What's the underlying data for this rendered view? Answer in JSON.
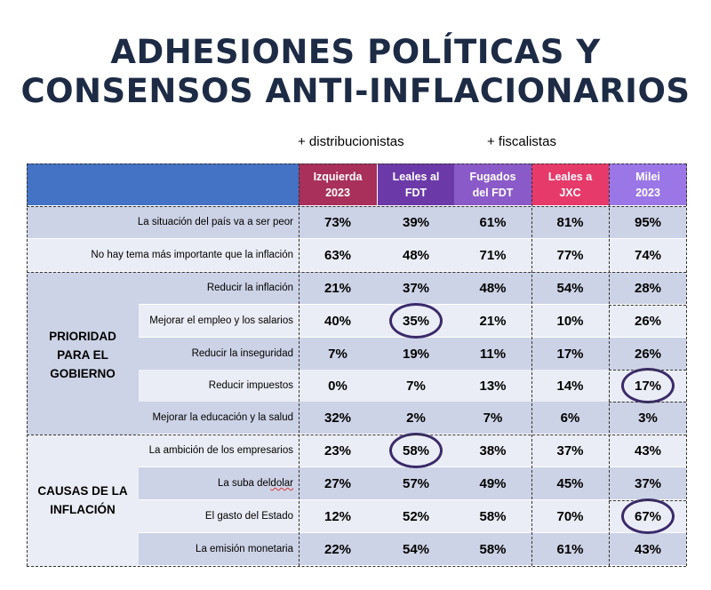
{
  "title": {
    "line1": "ADHESIONES POLÍTICAS Y",
    "line2": "CONSENSOS ANTI-INFLACIONARIOS"
  },
  "groups": {
    "left": "+ distribucionistas",
    "right": "+ fiscalistas"
  },
  "columns": [
    {
      "label": "Izquierda\n2023",
      "color": "#a8305a"
    },
    {
      "label": "Leales al\nFDT",
      "color": "#6b3aa8"
    },
    {
      "label": "Fugados\ndel FDT",
      "color": "#8a5ac8"
    },
    {
      "label": "Leales a\nJXC",
      "color": "#e63a6a"
    },
    {
      "label": "Milei\n2023",
      "color": "#9a76e6"
    }
  ],
  "sections": {
    "prioridad": "PRIORIDAD\nPARA EL\nGOBIERNO",
    "causas": "CAUSAS DE LA\nINFLACIÓN"
  },
  "rows": [
    {
      "label": "La situación del país va a ser peor",
      "values": [
        "73%",
        "39%",
        "61%",
        "81%",
        "95%"
      ]
    },
    {
      "label": "No hay tema más importante que la inflación",
      "values": [
        "63%",
        "48%",
        "71%",
        "77%",
        "74%"
      ]
    },
    {
      "label": "Reducir la inflación",
      "values": [
        "21%",
        "37%",
        "48%",
        "54%",
        "28%"
      ]
    },
    {
      "label": "Mejorar el empleo y los salarios",
      "values": [
        "40%",
        "35%",
        "21%",
        "10%",
        "26%"
      ]
    },
    {
      "label": "Reducir la inseguridad",
      "values": [
        "7%",
        "19%",
        "11%",
        "17%",
        "26%"
      ]
    },
    {
      "label": "Reducir impuestos",
      "values": [
        "0%",
        "7%",
        "13%",
        "14%",
        "17%"
      ]
    },
    {
      "label": "Mejorar la educación y la salud",
      "values": [
        "32%",
        "2%",
        "7%",
        "6%",
        "3%"
      ]
    },
    {
      "label": "La ambición de los empresarios",
      "values": [
        "23%",
        "58%",
        "38%",
        "37%",
        "43%"
      ]
    },
    {
      "label": "La suba del dolar",
      "values": [
        "27%",
        "57%",
        "49%",
        "45%",
        "37%"
      ]
    },
    {
      "label": "El gasto del Estado",
      "values": [
        "12%",
        "52%",
        "58%",
        "70%",
        "67%"
      ]
    },
    {
      "label": "La emisión monetaria",
      "values": [
        "22%",
        "54%",
        "58%",
        "61%",
        "43%"
      ]
    }
  ],
  "colors": {
    "title": "#1d2b45",
    "header_bar": "#4472c4",
    "row_dark": "#cdd3e6",
    "row_light": "#eaedf5",
    "circle": "#3a2a6a"
  }
}
